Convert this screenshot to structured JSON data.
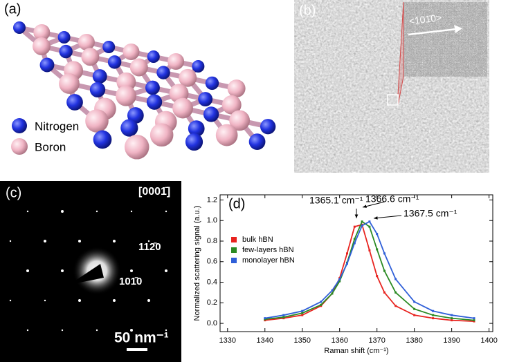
{
  "panel_a": {
    "label": "(a)",
    "legend": [
      "Nitrogen",
      "Boron"
    ]
  },
  "panel_b": {
    "label": "(b)",
    "direction": "<101̄0>"
  },
  "panel_c": {
    "label": "(c)",
    "zone_axis": "[0001̄]",
    "spots": [
      "112̄0",
      "101̄0"
    ],
    "scale_bar": "50 nm⁻¹"
  },
  "chart_data": {
    "type": "line",
    "panel_label": "(d)",
    "xlabel": "Raman shift (cm⁻¹)",
    "ylabel": "Normalized scattering signal (a.u.)",
    "annotations": [
      "1365.1 cm⁻¹",
      "1366.6 cm⁻¹",
      "1367.5 cm⁻¹"
    ],
    "x": [
      1340,
      1345,
      1350,
      1355,
      1358,
      1360,
      1362,
      1364,
      1366,
      1368,
      1370,
      1372,
      1375,
      1380,
      1385,
      1390,
      1396
    ],
    "series": [
      {
        "name": "bulk hBN",
        "color": "#e8231f",
        "values": [
          0.03,
          0.05,
          0.08,
          0.17,
          0.29,
          0.44,
          0.68,
          0.94,
          0.96,
          0.71,
          0.46,
          0.3,
          0.17,
          0.08,
          0.05,
          0.03,
          0.02
        ]
      },
      {
        "name": "few-layers hBN",
        "color": "#2a8a23",
        "values": [
          0.04,
          0.06,
          0.1,
          0.18,
          0.29,
          0.41,
          0.59,
          0.82,
          0.99,
          0.94,
          0.72,
          0.51,
          0.3,
          0.14,
          0.08,
          0.05,
          0.03
        ]
      },
      {
        "name": "monolayer hBN",
        "color": "#2f5fd8",
        "values": [
          0.05,
          0.08,
          0.12,
          0.21,
          0.32,
          0.43,
          0.58,
          0.78,
          0.95,
          0.99,
          0.87,
          0.68,
          0.43,
          0.21,
          0.12,
          0.08,
          0.05
        ]
      }
    ],
    "xlim": [
      1328,
      1401
    ],
    "xticks": [
      1330,
      1340,
      1350,
      1360,
      1370,
      1380,
      1390,
      1400
    ],
    "ylim": [
      -0.08,
      1.25
    ],
    "yticks": [
      {
        "value": 0,
        "label": "0.0"
      },
      {
        "value": 0.2,
        "label": "0.2"
      },
      {
        "value": 0.4,
        "label": "0.4"
      },
      {
        "value": 0.6,
        "label": "0.6"
      },
      {
        "value": 0.8,
        "label": "0.8"
      },
      {
        "value": 1,
        "label": "1.0"
      },
      {
        "value": 1.2,
        "label": "1.2"
      }
    ],
    "legend": "left"
  }
}
